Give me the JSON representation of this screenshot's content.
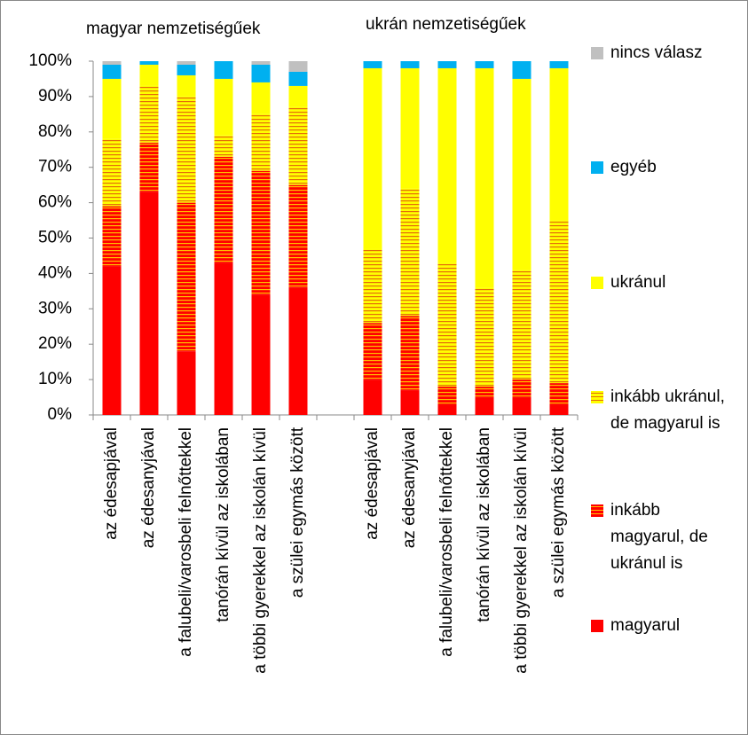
{
  "chart_data": {
    "type": "stacked_bar",
    "group_labels": [
      "magyar nemzetiségűek",
      "ukrán nemzetiségűek"
    ],
    "categories": [
      "az édesapjával",
      "az édesanyjával",
      "a falubeli/varosbeli felnőttekkel",
      "tanórán kívül az iskolában",
      "a többi gyerekkel az iskolán kívül",
      "a szülei egymás között",
      null,
      "az édesapjával",
      "az édesanyjával",
      "a falubeli/varosbeli felnőttekkel",
      "tanórán kívül az iskolában",
      "a többi gyerekkel az iskolán kívül",
      "a szülei egymás között"
    ],
    "series": [
      {
        "name": "magyarul",
        "color": "#ff0000",
        "values": [
          42,
          63,
          18,
          43,
          34,
          36,
          null,
          10,
          7,
          3,
          5,
          5,
          3
        ]
      },
      {
        "name": "inkább magyarul, de ukránul is",
        "color": "#ff0000",
        "hatch_color": "#ffc000",
        "values": [
          17,
          14,
          42,
          30,
          35,
          29,
          null,
          16,
          21,
          5,
          3,
          5,
          6
        ]
      },
      {
        "name": "inkább ukránul, de magyarul is",
        "color": "#ffff00",
        "hatch_color": "#e46c0a",
        "values": [
          19,
          16,
          30,
          6,
          16,
          22,
          null,
          21,
          36,
          35,
          28,
          31,
          46
        ]
      },
      {
        "name": "ukránul",
        "color": "#ffff00",
        "values": [
          17,
          6,
          6,
          16,
          9,
          6,
          null,
          51,
          34,
          55,
          62,
          54,
          43
        ]
      },
      {
        "name": "egyéb",
        "color": "#00b0f0",
        "values": [
          4,
          1,
          3,
          5,
          5,
          4,
          null,
          2,
          2,
          2,
          2,
          5,
          2
        ]
      },
      {
        "name": "nincs válasz",
        "color": "#c0c0c0",
        "values": [
          1,
          0,
          1,
          0,
          1,
          3,
          null,
          0,
          0,
          0,
          0,
          0,
          0
        ]
      }
    ],
    "ylim": [
      0,
      100
    ],
    "yticks": [
      {
        "value": 0,
        "label": "0%"
      },
      {
        "value": 10,
        "label": "10%"
      },
      {
        "value": 20,
        "label": "20%"
      },
      {
        "value": 30,
        "label": "30%"
      },
      {
        "value": 40,
        "label": "40%"
      },
      {
        "value": 50,
        "label": "50%"
      },
      {
        "value": 60,
        "label": "60%"
      },
      {
        "value": 70,
        "label": "70%"
      },
      {
        "value": 80,
        "label": "80%"
      },
      {
        "value": 90,
        "label": "90%"
      },
      {
        "value": 100,
        "label": "100%"
      }
    ],
    "grid": false,
    "legend": "right"
  }
}
